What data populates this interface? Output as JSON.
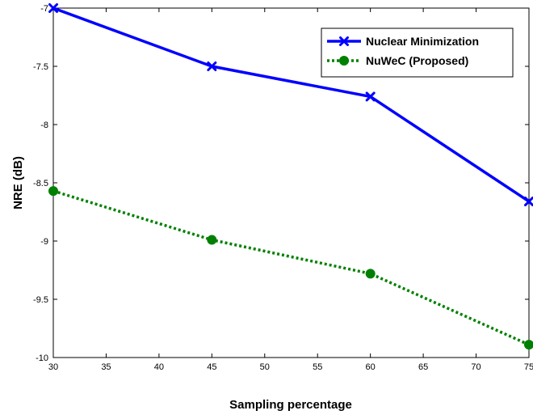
{
  "chart_data": {
    "type": "line",
    "title": "",
    "xlabel": "Sampling percentage",
    "ylabel": "NRE (dB)",
    "xlim": [
      30,
      75
    ],
    "ylim": [
      -10,
      -7
    ],
    "xticks": [
      30,
      35,
      40,
      45,
      50,
      55,
      60,
      65,
      70,
      75
    ],
    "yticks": [
      -10,
      -9.5,
      -9,
      -8.5,
      -8,
      -7.5,
      -7
    ],
    "xtick_labels": [
      "30",
      "35",
      "40",
      "45",
      "50",
      "55",
      "60",
      "65",
      "70",
      "75"
    ],
    "ytick_labels": [
      "-10",
      "-9.5",
      "-9",
      "-8.5",
      "-8",
      "-7.5",
      "-7"
    ],
    "grid": false,
    "legend_position": "top-right",
    "x": [
      30,
      45,
      60,
      75
    ],
    "series": [
      {
        "name": "Nuclear Minimization",
        "values": [
          -7.0,
          -7.5,
          -7.76,
          -8.66
        ],
        "color": "#0000ff",
        "line_style": "solid",
        "marker": "x"
      },
      {
        "name": "NuWeC (Proposed)",
        "values": [
          -8.57,
          -8.99,
          -9.28,
          -9.89
        ],
        "color": "#008000",
        "line_style": "dotted",
        "marker": "circle"
      }
    ]
  }
}
